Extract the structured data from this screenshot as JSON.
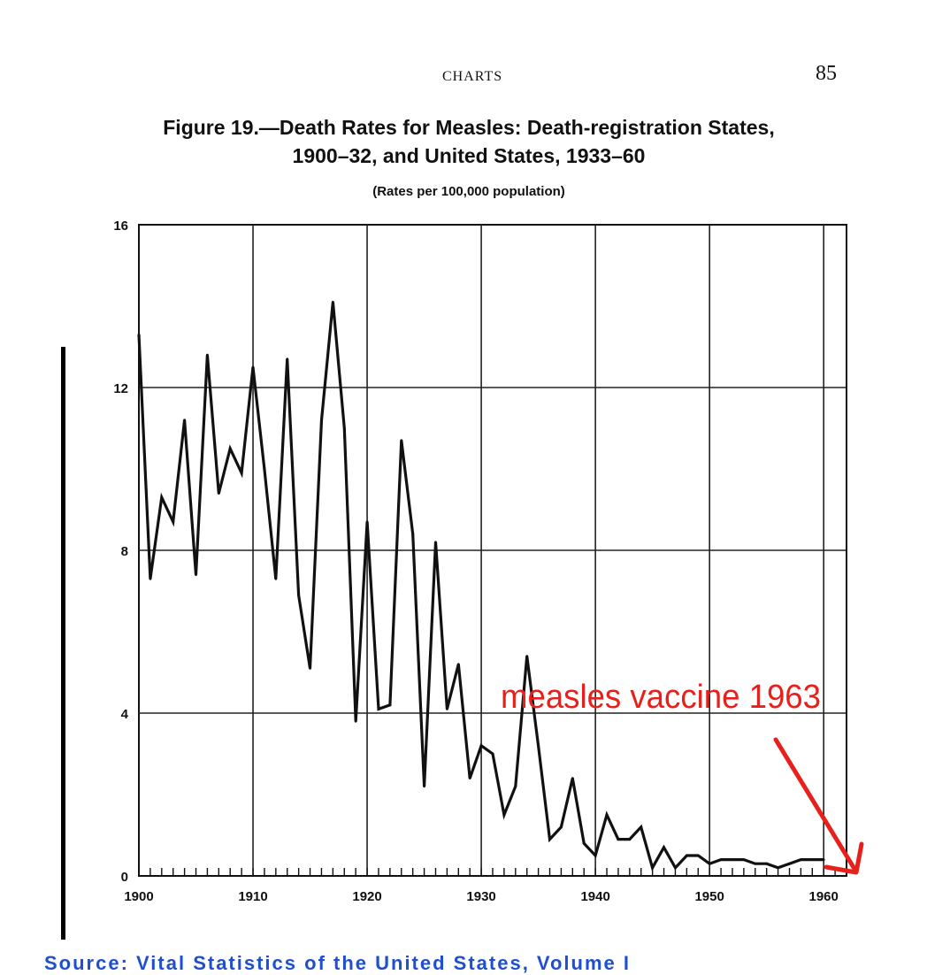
{
  "page": {
    "running_head": "CHARTS",
    "page_number": "85"
  },
  "annotation": {
    "text": "measles vaccine 1963",
    "color": "#e8201c"
  },
  "chart_data": {
    "type": "line",
    "title_line1": "Figure 19.—Death Rates for Measles: Death-registration States,",
    "title_line2": "1900–32, and United States, 1933–60",
    "subtitle": "(Rates per 100,000 population)",
    "xlabel": "",
    "ylabel": "",
    "xlim": [
      1900,
      1962
    ],
    "ylim": [
      0,
      16
    ],
    "x_ticks": [
      1900,
      1910,
      1920,
      1930,
      1940,
      1950,
      1960
    ],
    "y_ticks": [
      0,
      4,
      8,
      12,
      16
    ],
    "grid": true,
    "line_color": "#111111",
    "x": [
      1900,
      1901,
      1902,
      1903,
      1904,
      1905,
      1906,
      1907,
      1908,
      1909,
      1910,
      1911,
      1912,
      1913,
      1914,
      1915,
      1916,
      1917,
      1918,
      1919,
      1920,
      1921,
      1922,
      1923,
      1924,
      1925,
      1926,
      1927,
      1928,
      1929,
      1930,
      1931,
      1932,
      1933,
      1934,
      1935,
      1936,
      1937,
      1938,
      1939,
      1940,
      1941,
      1942,
      1943,
      1944,
      1945,
      1946,
      1947,
      1948,
      1949,
      1950,
      1951,
      1952,
      1953,
      1954,
      1955,
      1956,
      1957,
      1958,
      1959,
      1960
    ],
    "y": [
      13.3,
      7.3,
      9.3,
      8.7,
      11.2,
      7.4,
      12.8,
      9.4,
      10.5,
      9.9,
      12.5,
      10.0,
      7.3,
      12.7,
      6.9,
      5.1,
      11.2,
      14.1,
      11.0,
      3.8,
      8.7,
      4.1,
      4.2,
      10.7,
      8.4,
      2.2,
      8.2,
      4.1,
      5.2,
      2.4,
      3.2,
      3.0,
      1.5,
      2.2,
      5.4,
      3.2,
      0.9,
      1.2,
      2.4,
      0.8,
      0.5,
      1.5,
      0.9,
      0.9,
      1.2,
      0.2,
      0.7,
      0.2,
      0.5,
      0.5,
      0.3,
      0.4,
      0.4,
      0.4,
      0.3,
      0.3,
      0.2,
      0.3,
      0.4,
      0.4,
      0.4
    ]
  },
  "footer": {
    "text": "Source: Vital Statistics of the United States, Volume I"
  }
}
